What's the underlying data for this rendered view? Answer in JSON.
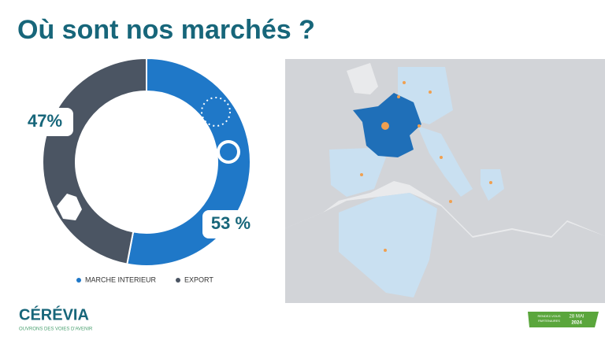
{
  "chart_data": {
    "type": "pie",
    "title": "Où sont nos marchés ?",
    "categories": [
      "MARCHE INTERIEUR",
      "EXPORT"
    ],
    "values": [
      53,
      47
    ],
    "value_labels": [
      "53 %",
      "47%"
    ],
    "colors": [
      "#1f78c8",
      "#4b5563"
    ],
    "donut": true,
    "legend": "bottom"
  },
  "footer": {
    "logo": "CÉRÉVIA",
    "tagline": "OUVRONS DES VOIES D'AVENIR",
    "badge": {
      "line1": "RENDEZ-VOUS",
      "line2": "PARTENAIRES",
      "date": "28 MAI",
      "year": "2024"
    }
  }
}
